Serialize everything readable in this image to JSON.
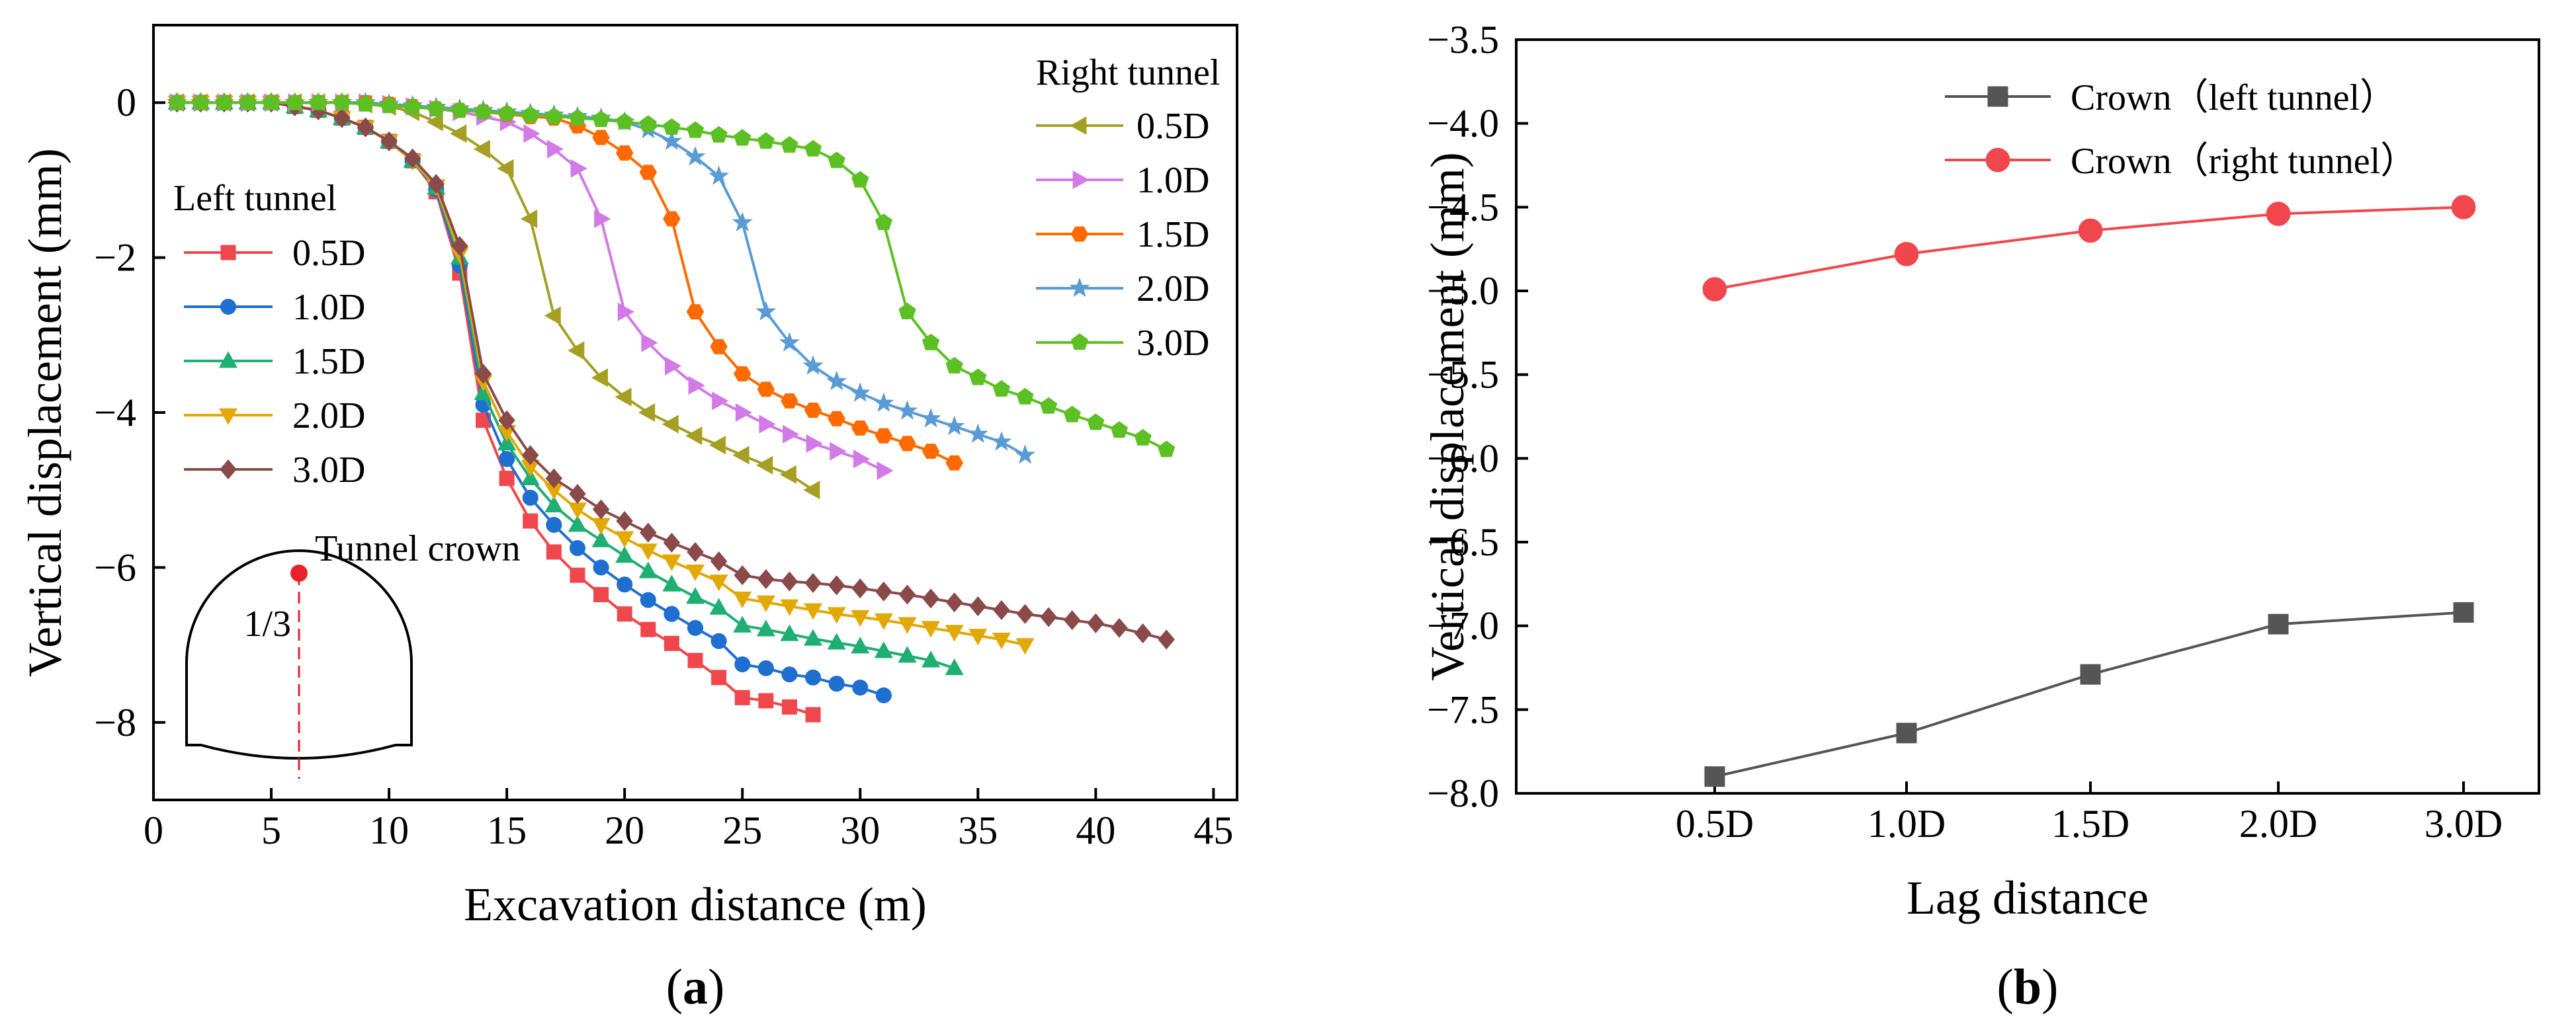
{
  "panels": {
    "a_label": "a",
    "b_label": "b"
  },
  "chart_data": [
    {
      "type": "line",
      "id": "a",
      "xlabel": "Excavation distance (m)",
      "ylabel": "Vertical displacement (mm)",
      "xlim": [
        0,
        46
      ],
      "ylim": [
        -9,
        1
      ],
      "xticks": [
        0,
        5,
        10,
        15,
        20,
        25,
        30,
        35,
        40,
        45
      ],
      "yticks": [
        0,
        -2,
        -4,
        -6,
        -8
      ],
      "annotation": {
        "tunnel_crown": "Tunnel crown",
        "ratio": "1/3"
      },
      "legend_groups": [
        {
          "title": "Left tunnel",
          "placement": "left"
        },
        {
          "title": "Right tunnel",
          "placement": "top-right"
        }
      ],
      "series": [
        {
          "group": "Left tunnel",
          "name": "0.5D",
          "color": "#f0474d",
          "marker": "square",
          "x": [
            1,
            2,
            3,
            4,
            5,
            6,
            7,
            8,
            9,
            10,
            11,
            12,
            13,
            14,
            15,
            16,
            17,
            18,
            19,
            20,
            21,
            22,
            23,
            24,
            25,
            26,
            27,
            28
          ],
          "y": [
            0,
            0,
            0,
            0,
            0,
            -0.05,
            -0.1,
            -0.2,
            -0.32,
            -0.5,
            -0.75,
            -1.15,
            -2.2,
            -4.1,
            -4.85,
            -5.4,
            -5.8,
            -6.1,
            -6.35,
            -6.6,
            -6.8,
            -6.98,
            -7.2,
            -7.42,
            -7.68,
            -7.72,
            -7.8,
            -7.9
          ]
        },
        {
          "group": "Left tunnel",
          "name": "1.0D",
          "color": "#1f6fd1",
          "marker": "circle",
          "x": [
            1,
            2,
            3,
            4,
            5,
            6,
            7,
            8,
            9,
            10,
            11,
            12,
            13,
            14,
            15,
            16,
            17,
            18,
            19,
            20,
            21,
            22,
            23,
            24,
            25,
            26,
            27,
            28,
            29,
            30,
            31
          ],
          "y": [
            0,
            0,
            0,
            0,
            0,
            -0.05,
            -0.1,
            -0.2,
            -0.32,
            -0.5,
            -0.75,
            -1.12,
            -2.1,
            -3.9,
            -4.6,
            -5.1,
            -5.45,
            -5.75,
            -6.0,
            -6.22,
            -6.42,
            -6.6,
            -6.78,
            -6.95,
            -7.25,
            -7.3,
            -7.38,
            -7.42,
            -7.5,
            -7.55,
            -7.65
          ]
        },
        {
          "group": "Left tunnel",
          "name": "1.5D",
          "color": "#1fae73",
          "marker": "triangle-up",
          "x": [
            1,
            2,
            3,
            4,
            5,
            6,
            7,
            8,
            9,
            10,
            11,
            12,
            13,
            14,
            15,
            16,
            17,
            18,
            19,
            20,
            21,
            22,
            23,
            24,
            25,
            26,
            27,
            28,
            29,
            30,
            31,
            32,
            33,
            34
          ],
          "y": [
            0,
            0,
            0,
            0,
            0,
            -0.05,
            -0.1,
            -0.2,
            -0.32,
            -0.5,
            -0.75,
            -1.1,
            -2.0,
            -3.75,
            -4.4,
            -4.85,
            -5.2,
            -5.45,
            -5.65,
            -5.85,
            -6.05,
            -6.22,
            -6.38,
            -6.52,
            -6.75,
            -6.8,
            -6.86,
            -6.92,
            -6.97,
            -7.02,
            -7.08,
            -7.14,
            -7.2,
            -7.3
          ]
        },
        {
          "group": "Left tunnel",
          "name": "2.0D",
          "color": "#e2a806",
          "marker": "triangle-down",
          "x": [
            1,
            2,
            3,
            4,
            5,
            6,
            7,
            8,
            9,
            10,
            11,
            12,
            13,
            14,
            15,
            16,
            17,
            18,
            19,
            20,
            21,
            22,
            23,
            24,
            25,
            26,
            27,
            28,
            29,
            30,
            31,
            32,
            33,
            34,
            35,
            36,
            37
          ],
          "y": [
            0,
            0,
            0,
            0,
            0,
            -0.05,
            -0.1,
            -0.2,
            -0.32,
            -0.5,
            -0.75,
            -1.08,
            -1.95,
            -3.6,
            -4.25,
            -4.7,
            -5.0,
            -5.25,
            -5.45,
            -5.62,
            -5.78,
            -5.92,
            -6.05,
            -6.18,
            -6.4,
            -6.45,
            -6.5,
            -6.55,
            -6.6,
            -6.64,
            -6.68,
            -6.73,
            -6.78,
            -6.83,
            -6.88,
            -6.93,
            -7.0
          ]
        },
        {
          "group": "Left tunnel",
          "name": "3.0D",
          "color": "#8b4a4a",
          "marker": "diamond",
          "x": [
            1,
            2,
            3,
            4,
            5,
            6,
            7,
            8,
            9,
            10,
            11,
            12,
            13,
            14,
            15,
            16,
            17,
            18,
            19,
            20,
            21,
            22,
            23,
            24,
            25,
            26,
            27,
            28,
            29,
            30,
            31,
            32,
            33,
            34,
            35,
            36,
            37,
            38,
            39,
            40,
            41,
            42,
            43
          ],
          "y": [
            0,
            0,
            0,
            0,
            0,
            -0.05,
            -0.1,
            -0.2,
            -0.32,
            -0.5,
            -0.72,
            -1.05,
            -1.85,
            -3.5,
            -4.1,
            -4.55,
            -4.85,
            -5.05,
            -5.25,
            -5.4,
            -5.55,
            -5.68,
            -5.8,
            -5.92,
            -6.1,
            -6.15,
            -6.18,
            -6.2,
            -6.23,
            -6.27,
            -6.31,
            -6.35,
            -6.4,
            -6.45,
            -6.5,
            -6.55,
            -6.6,
            -6.64,
            -6.68,
            -6.72,
            -6.78,
            -6.85,
            -6.93
          ]
        },
        {
          "group": "Right tunnel",
          "name": "0.5D",
          "color": "#a5a024",
          "marker": "triangle-left",
          "x": [
            1,
            2,
            3,
            4,
            5,
            6,
            7,
            8,
            9,
            10,
            11,
            12,
            13,
            14,
            15,
            16,
            17,
            18,
            19,
            20,
            21,
            22,
            23,
            24,
            25,
            26,
            27,
            28
          ],
          "y": [
            0,
            0,
            0,
            0,
            0,
            0,
            0,
            0,
            -0.02,
            -0.05,
            -0.12,
            -0.25,
            -0.4,
            -0.6,
            -0.85,
            -1.5,
            -2.75,
            -3.2,
            -3.55,
            -3.8,
            -4.0,
            -4.15,
            -4.3,
            -4.42,
            -4.55,
            -4.68,
            -4.8,
            -5.0
          ]
        },
        {
          "group": "Right tunnel",
          "name": "1.0D",
          "color": "#d17ae8",
          "marker": "triangle-right",
          "x": [
            1,
            2,
            3,
            4,
            5,
            6,
            7,
            8,
            9,
            10,
            11,
            12,
            13,
            14,
            15,
            16,
            17,
            18,
            19,
            20,
            21,
            22,
            23,
            24,
            25,
            26,
            27,
            28,
            29,
            30,
            31
          ],
          "y": [
            0,
            0,
            0,
            0,
            0,
            0,
            0,
            0,
            0,
            -0.02,
            -0.05,
            -0.08,
            -0.12,
            -0.18,
            -0.25,
            -0.4,
            -0.6,
            -0.85,
            -1.5,
            -2.7,
            -3.1,
            -3.4,
            -3.65,
            -3.85,
            -4.0,
            -4.15,
            -4.28,
            -4.4,
            -4.5,
            -4.6,
            -4.75
          ]
        },
        {
          "group": "Right tunnel",
          "name": "1.5D",
          "color": "#ff6a00",
          "marker": "hexagon",
          "x": [
            1,
            2,
            3,
            4,
            5,
            6,
            7,
            8,
            9,
            10,
            11,
            12,
            13,
            14,
            15,
            16,
            17,
            18,
            19,
            20,
            21,
            22,
            23,
            24,
            25,
            26,
            27,
            28,
            29,
            30,
            31,
            32,
            33,
            34
          ],
          "y": [
            0,
            0,
            0,
            0,
            0,
            0,
            0,
            0,
            0,
            -0.02,
            -0.05,
            -0.08,
            -0.1,
            -0.12,
            -0.15,
            -0.18,
            -0.2,
            -0.3,
            -0.45,
            -0.65,
            -0.9,
            -1.5,
            -2.7,
            -3.15,
            -3.5,
            -3.7,
            -3.85,
            -3.97,
            -4.08,
            -4.2,
            -4.3,
            -4.4,
            -4.5,
            -4.65
          ]
        },
        {
          "group": "Right tunnel",
          "name": "2.0D",
          "color": "#5a9bd5",
          "marker": "star",
          "x": [
            1,
            2,
            3,
            4,
            5,
            6,
            7,
            8,
            9,
            10,
            11,
            12,
            13,
            14,
            15,
            16,
            17,
            18,
            19,
            20,
            21,
            22,
            23,
            24,
            25,
            26,
            27,
            28,
            29,
            30,
            31,
            32,
            33,
            34,
            35,
            36,
            37
          ],
          "y": [
            0,
            0,
            0,
            0,
            0,
            0,
            0,
            0,
            0,
            -0.02,
            -0.04,
            -0.06,
            -0.08,
            -0.1,
            -0.12,
            -0.14,
            -0.16,
            -0.18,
            -0.2,
            -0.25,
            -0.35,
            -0.5,
            -0.7,
            -0.95,
            -1.55,
            -2.7,
            -3.1,
            -3.4,
            -3.6,
            -3.75,
            -3.88,
            -3.98,
            -4.08,
            -4.18,
            -4.28,
            -4.38,
            -4.55
          ]
        },
        {
          "group": "Right tunnel",
          "name": "3.0D",
          "color": "#5cc024",
          "marker": "pentagon",
          "x": [
            1,
            2,
            3,
            4,
            5,
            6,
            7,
            8,
            9,
            10,
            11,
            12,
            13,
            14,
            15,
            16,
            17,
            18,
            19,
            20,
            21,
            22,
            23,
            24,
            25,
            26,
            27,
            28,
            29,
            30,
            31,
            32,
            33,
            34,
            35,
            36,
            37,
            38,
            39,
            40,
            41,
            42,
            43
          ],
          "y": [
            0,
            0,
            0,
            0,
            0,
            0,
            0,
            0,
            -0.02,
            -0.04,
            -0.06,
            -0.08,
            -0.1,
            -0.12,
            -0.14,
            -0.16,
            -0.18,
            -0.2,
            -0.22,
            -0.25,
            -0.28,
            -0.32,
            -0.36,
            -0.42,
            -0.46,
            -0.5,
            -0.55,
            -0.6,
            -0.75,
            -1.0,
            -1.55,
            -2.7,
            -3.1,
            -3.4,
            -3.55,
            -3.7,
            -3.8,
            -3.92,
            -4.03,
            -4.13,
            -4.23,
            -4.33,
            -4.48
          ]
        }
      ]
    },
    {
      "type": "line",
      "id": "b",
      "xlabel": "Lag distance",
      "ylabel": "Vertical displacement (mm)",
      "categories": [
        "0.5D",
        "1.0D",
        "1.5D",
        "2.0D",
        "3.0D"
      ],
      "ylim": [
        -8.0,
        -3.5
      ],
      "yticks": [
        -3.5,
        -4.0,
        -4.5,
        -5.0,
        -5.5,
        -6.0,
        -6.5,
        -7.0,
        -7.5,
        -8.0
      ],
      "ytick_labels": [
        "−3.5",
        "−4.0",
        "−4.5",
        "−5.0",
        "−5.5",
        "−6.0",
        "−6.5",
        "−7.0",
        "−7.5",
        "−8.0"
      ],
      "legend_placement": "top-right",
      "series": [
        {
          "name": "Crown（left tunnel）",
          "color": "#555555",
          "marker": "square",
          "values": [
            -7.9,
            -7.64,
            -7.29,
            -6.99,
            -6.92
          ]
        },
        {
          "name": "Crown（right tunnel）",
          "color": "#f0474d",
          "marker": "circle",
          "values": [
            -4.99,
            -4.78,
            -4.64,
            -4.54,
            -4.5
          ]
        }
      ]
    }
  ]
}
